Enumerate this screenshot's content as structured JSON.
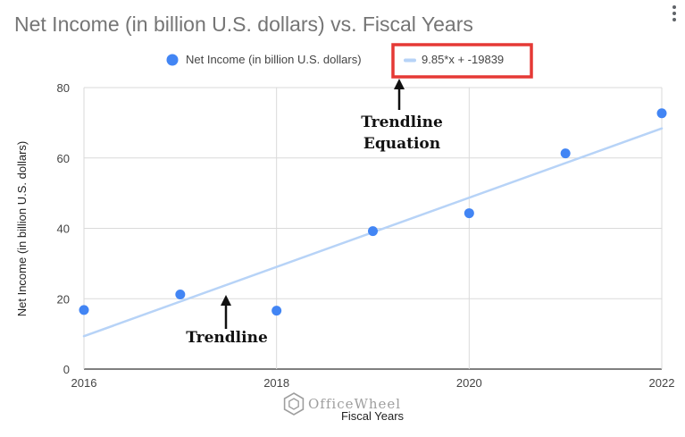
{
  "header": {
    "title": "Net Income (in billion U.S. dollars) vs. Fiscal Years"
  },
  "chart_data": {
    "type": "scatter",
    "title": "Net Income (in billion U.S. dollars) vs. Fiscal Years",
    "xlabel": "Fiscal Years",
    "ylabel": "Net Income (in billion U.S. dollars)",
    "xlim": [
      2016,
      2022
    ],
    "ylim": [
      0,
      80
    ],
    "xticks": [
      "2016",
      "2018",
      "2020",
      "2022"
    ],
    "yticks": [
      "0",
      "20",
      "40",
      "60",
      "80"
    ],
    "grid": true,
    "legend": "top-center",
    "series": [
      {
        "name": "Net Income (in billion U.S. dollars)",
        "color": "#4285f4",
        "x": [
          2016,
          2017,
          2018,
          2019,
          2020,
          2021,
          2022
        ],
        "y": [
          16.8,
          21.2,
          16.6,
          39.2,
          44.3,
          61.3,
          72.7
        ]
      }
    ],
    "trendline": {
      "label": "9.85*x + -19839",
      "slope": 9.85,
      "intercept": -19839,
      "color": "#b7d3f7"
    },
    "annotations": [
      {
        "text_lines": [
          "Trendline",
          "Equation"
        ],
        "points_to": "trendline-equation"
      },
      {
        "text_lines": [
          "Trendline"
        ],
        "points_to": "trendline"
      }
    ]
  },
  "watermark": {
    "text": "OfficeWheel"
  },
  "colors": {
    "highlight_box": "#e53935"
  },
  "icons": {
    "menu": "more-vert-icon"
  }
}
